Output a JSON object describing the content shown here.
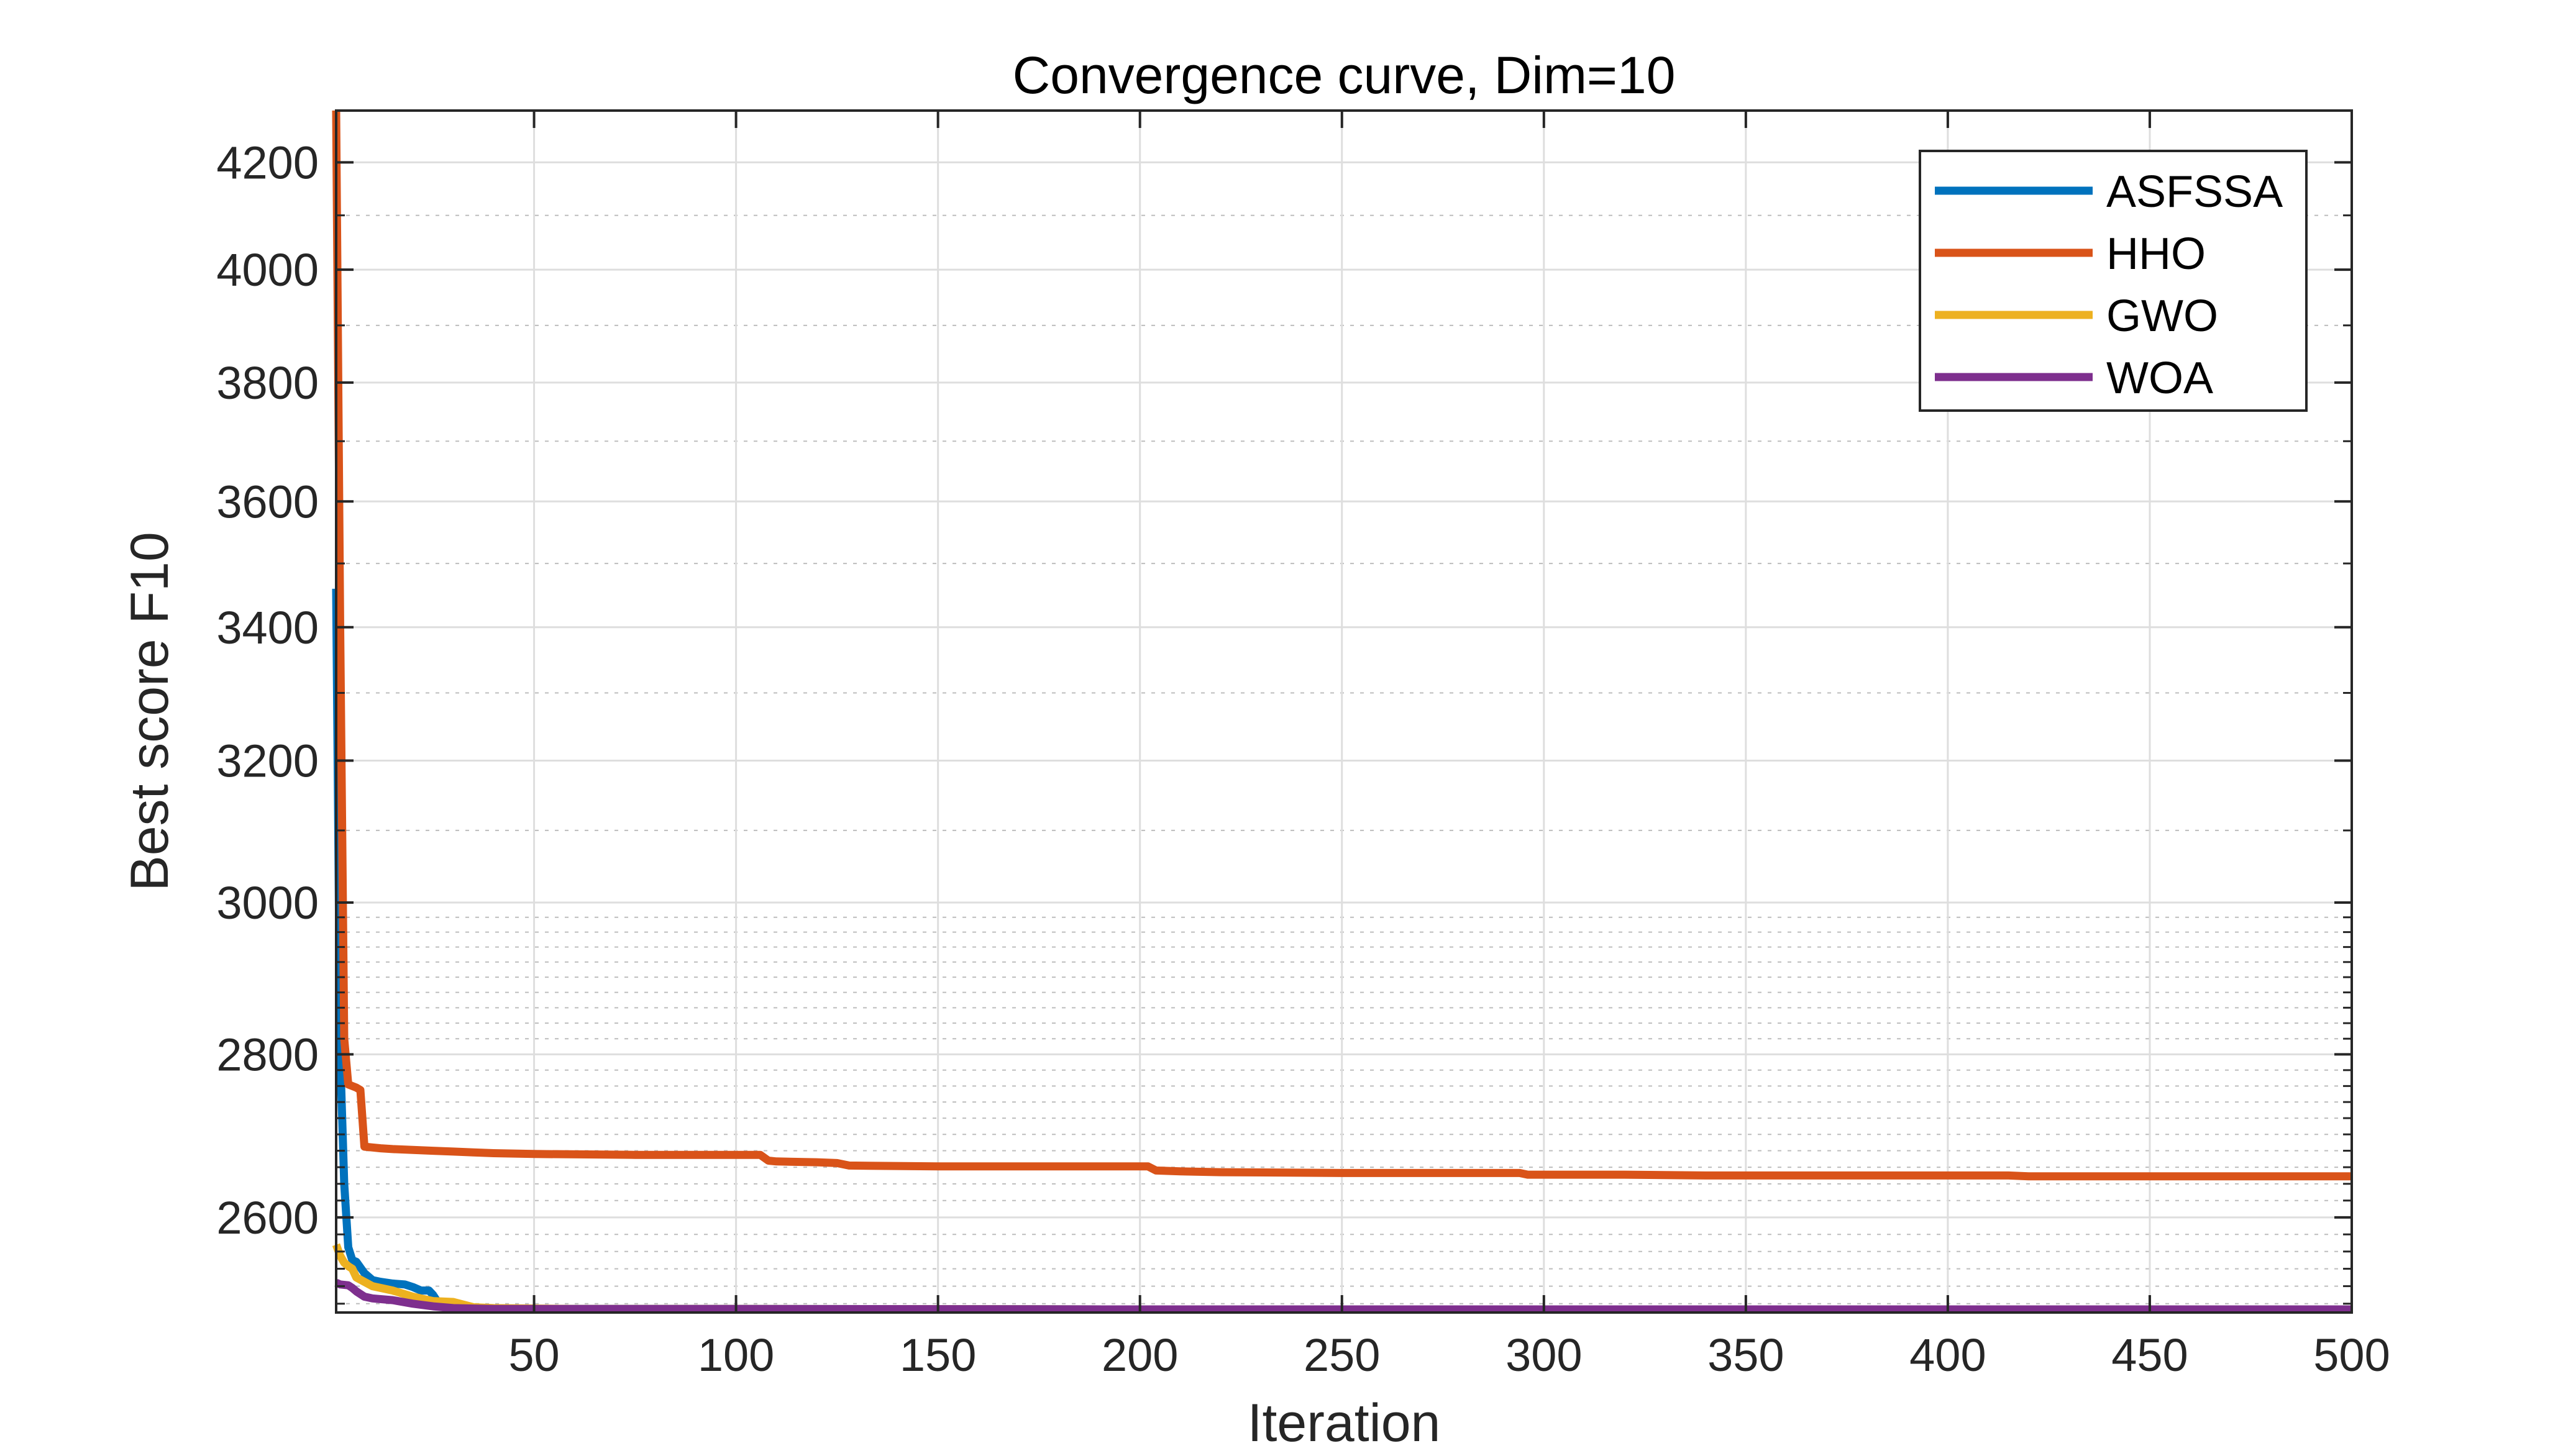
{
  "chart_data": {
    "type": "line",
    "title": "Convergence curve, Dim=10",
    "xlabel": "Iteration",
    "ylabel": "Best score F10",
    "xlim": [
      1,
      500
    ],
    "ylim": [
      2490,
      4300
    ],
    "y_scale": "log",
    "grid": true,
    "minor_grid": true,
    "legend_position": "top-right",
    "x_ticks": [
      50,
      100,
      150,
      200,
      250,
      300,
      350,
      400,
      450,
      500
    ],
    "x_tick_labels": [
      "50",
      "100",
      "150",
      "200",
      "250",
      "300",
      "350",
      "400",
      "450",
      "500"
    ],
    "y_ticks": [
      2600,
      2800,
      3000,
      3200,
      3400,
      3600,
      3800,
      4000,
      4200
    ],
    "y_tick_labels": [
      "2600",
      "2800",
      "3000",
      "3200",
      "3400",
      "3600",
      "3800",
      "4000",
      "4200"
    ],
    "series": [
      {
        "name": "ASFSSA",
        "color": "#0072BD",
        "points": [
          [
            1,
            3460
          ],
          [
            2,
            2800
          ],
          [
            3,
            2640
          ],
          [
            4,
            2565
          ],
          [
            5,
            2550
          ],
          [
            6,
            2548
          ],
          [
            8,
            2535
          ],
          [
            10,
            2527
          ],
          [
            12,
            2525
          ],
          [
            15,
            2523
          ],
          [
            18,
            2522
          ],
          [
            20,
            2519
          ],
          [
            22,
            2515
          ],
          [
            24,
            2515
          ],
          [
            25,
            2510
          ],
          [
            26,
            2503
          ],
          [
            28,
            2498
          ],
          [
            30,
            2496
          ],
          [
            35,
            2495
          ],
          [
            40,
            2494
          ],
          [
            60,
            2494
          ],
          [
            100,
            2494
          ],
          [
            200,
            2493.5
          ],
          [
            500,
            2493.5
          ]
        ]
      },
      {
        "name": "HHO",
        "color": "#D95319",
        "points": [
          [
            1,
            4300
          ],
          [
            2,
            3400
          ],
          [
            3,
            2820
          ],
          [
            4,
            2762
          ],
          [
            5,
            2760
          ],
          [
            6,
            2758
          ],
          [
            7,
            2755
          ],
          [
            8,
            2685
          ],
          [
            10,
            2684
          ],
          [
            12,
            2683
          ],
          [
            15,
            2682
          ],
          [
            20,
            2681
          ],
          [
            25,
            2680
          ],
          [
            30,
            2679
          ],
          [
            35,
            2678
          ],
          [
            40,
            2677
          ],
          [
            50,
            2676
          ],
          [
            75,
            2675
          ],
          [
            100,
            2675
          ],
          [
            106,
            2675
          ],
          [
            108,
            2668
          ],
          [
            110,
            2667
          ],
          [
            120,
            2666
          ],
          [
            125,
            2665
          ],
          [
            128,
            2662
          ],
          [
            150,
            2661
          ],
          [
            180,
            2661
          ],
          [
            202,
            2661
          ],
          [
            204,
            2656
          ],
          [
            210,
            2655
          ],
          [
            220,
            2654
          ],
          [
            250,
            2653
          ],
          [
            270,
            2653
          ],
          [
            294,
            2653
          ],
          [
            296,
            2651
          ],
          [
            320,
            2651
          ],
          [
            340,
            2650
          ],
          [
            360,
            2650
          ],
          [
            400,
            2650
          ],
          [
            415,
            2650
          ],
          [
            420,
            2649
          ],
          [
            460,
            2649
          ],
          [
            500,
            2649
          ]
        ]
      },
      {
        "name": "GWO",
        "color": "#EDB120",
        "points": [
          [
            1,
            2568
          ],
          [
            2,
            2555
          ],
          [
            3,
            2547
          ],
          [
            4,
            2543
          ],
          [
            5,
            2540
          ],
          [
            6,
            2530
          ],
          [
            8,
            2525
          ],
          [
            10,
            2520
          ],
          [
            15,
            2515
          ],
          [
            20,
            2508
          ],
          [
            25,
            2503
          ],
          [
            30,
            2502
          ],
          [
            35,
            2496
          ],
          [
            40,
            2495
          ],
          [
            60,
            2494
          ],
          [
            100,
            2494
          ],
          [
            200,
            2493.5
          ],
          [
            500,
            2493.5
          ]
        ]
      },
      {
        "name": "WOA",
        "color": "#7E2F8E",
        "points": [
          [
            1,
            2524
          ],
          [
            2,
            2522
          ],
          [
            4,
            2521
          ],
          [
            5,
            2518
          ],
          [
            6,
            2514
          ],
          [
            8,
            2508
          ],
          [
            10,
            2506
          ],
          [
            15,
            2504
          ],
          [
            20,
            2500
          ],
          [
            25,
            2497
          ],
          [
            30,
            2495
          ],
          [
            40,
            2494
          ],
          [
            60,
            2494
          ],
          [
            100,
            2494
          ],
          [
            200,
            2493.5
          ],
          [
            500,
            2493.5
          ]
        ]
      }
    ]
  }
}
